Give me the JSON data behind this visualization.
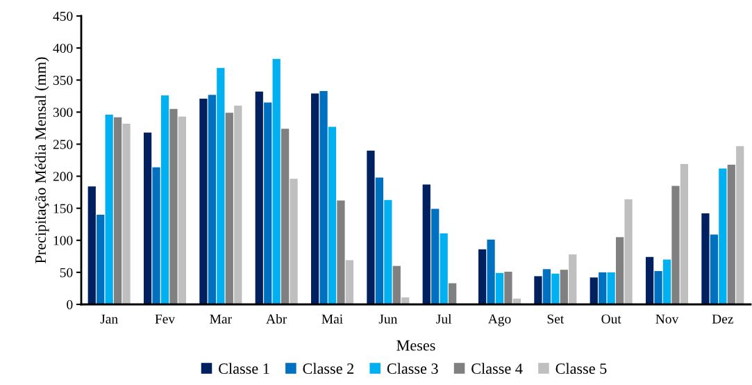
{
  "chart_data": {
    "type": "bar",
    "xlabel": "Meses",
    "ylabel": "Precipitação Média Mensal (mm)",
    "categories": [
      "Jan",
      "Fev",
      "Mar",
      "Abr",
      "Mai",
      "Jun",
      "Jul",
      "Ago",
      "Set",
      "Out",
      "Nov",
      "Dez"
    ],
    "series": [
      {
        "name": "Classe 1",
        "color": "#002060",
        "values": [
          184,
          268,
          321,
          332,
          329,
          240,
          187,
          86,
          44,
          42,
          74,
          142
        ]
      },
      {
        "name": "Classe 2",
        "color": "#0070c0",
        "values": [
          140,
          214,
          327,
          315,
          333,
          198,
          149,
          101,
          55,
          50,
          52,
          109
        ]
      },
      {
        "name": "Classe 3",
        "color": "#00b0f0",
        "values": [
          296,
          326,
          369,
          383,
          277,
          163,
          111,
          49,
          48,
          50,
          70,
          212
        ]
      },
      {
        "name": "Classe 4",
        "color": "#808080",
        "values": [
          292,
          305,
          299,
          274,
          162,
          60,
          33,
          51,
          54,
          105,
          185,
          218
        ]
      },
      {
        "name": "Classe 5",
        "color": "#bfbfbf",
        "values": [
          282,
          293,
          310,
          196,
          69,
          11,
          null,
          9,
          78,
          164,
          219,
          247
        ]
      }
    ],
    "ylim": [
      0,
      450
    ],
    "yticks": [
      0,
      50,
      100,
      150,
      200,
      250,
      300,
      350,
      400,
      450
    ],
    "grid": false,
    "legend": "bottom"
  }
}
